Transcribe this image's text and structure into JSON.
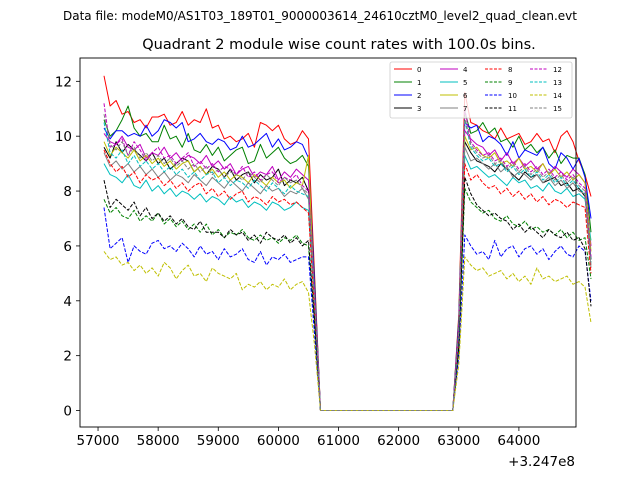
{
  "header_text": "Data file: modeM0/AS1T03_189T01_9000003614_24610cztM0_level2_quad_clean.evt",
  "chart_data": {
    "type": "line",
    "title": "Quadrant 2 module wise count rates with 100.0s bins.",
    "xlabel": "",
    "ylabel": "",
    "x_offset_label": "+3.247e8",
    "xlim": [
      56700,
      64950
    ],
    "ylim": [
      -0.6,
      12.85
    ],
    "x_ticks": [
      57000,
      58000,
      59000,
      60000,
      61000,
      62000,
      63000,
      64000
    ],
    "y_ticks": [
      0,
      2,
      4,
      6,
      8,
      10,
      12
    ],
    "x_start": 57100,
    "x_step": 100,
    "gap_start_index": 35,
    "gap_end_index": 59,
    "legend_location": "upper right",
    "series": [
      {
        "name": "0",
        "color": "#ff0000",
        "dash": "solid",
        "first": [
          12.2,
          11.1,
          11.3,
          10.8,
          10.9,
          10.5,
          10.6,
          10.3,
          10.7,
          10.7,
          10.8,
          10.4,
          10.5,
          10.9,
          10.4,
          10.6,
          10.5,
          11.0,
          10.3,
          10.4,
          9.9,
          10.0,
          9.8,
          9.9,
          10.1,
          9.6,
          10.5,
          10.4,
          10.2,
          10.4,
          9.9,
          9.7,
          9.8,
          10.2,
          9.9
        ],
        "drop": 5.0,
        "second": [
          11.6,
          10.5,
          10.4,
          10.2,
          10.1,
          9.9,
          10.3,
          9.9,
          10.0,
          10.1,
          9.7,
          9.8,
          10.1,
          9.8,
          9.9,
          9.4,
          10.0,
          10.2,
          9.8,
          9.1,
          8.6,
          7.8
        ]
      },
      {
        "name": "1",
        "color": "#008000",
        "dash": "solid",
        "first": [
          10.6,
          10.0,
          10.2,
          10.6,
          11.1,
          10.3,
          10.0,
          10.1,
          9.8,
          9.8,
          10.4,
          9.9,
          10.0,
          9.6,
          10.1,
          9.5,
          9.4,
          9.7,
          9.3,
          9.6,
          9.1,
          9.3,
          9.5,
          9.6,
          9.0,
          9.1,
          9.7,
          9.2,
          9.4,
          9.6,
          9.2,
          9.0,
          9.1,
          9.3,
          8.9
        ],
        "drop": 4.8,
        "second": [
          10.9,
          10.1,
          10.2,
          10.5,
          10.1,
          10.3,
          9.8,
          9.9,
          9.6,
          10.0,
          9.5,
          9.7,
          9.4,
          9.6,
          9.2,
          9.5,
          9.0,
          9.3,
          9.2,
          9.2,
          8.6,
          6.5
        ]
      },
      {
        "name": "2",
        "color": "#0000ff",
        "dash": "solid",
        "first": [
          10.3,
          9.9,
          10.2,
          10.2,
          10.0,
          10.1,
          10.0,
          10.4,
          10.0,
          10.2,
          10.6,
          10.5,
          10.3,
          10.5,
          9.8,
          9.9,
          10.1,
          9.8,
          9.7,
          9.9,
          9.8,
          9.5,
          9.6,
          10.0,
          9.6,
          9.7,
          9.9,
          10.1,
          9.6,
          9.9,
          9.5,
          9.6,
          9.8,
          9.7,
          9.2
        ],
        "drop": 4.6,
        "second": [
          10.5,
          10.3,
          10.4,
          9.8,
          10.0,
          9.9,
          9.7,
          9.3,
          9.8,
          9.2,
          9.5,
          9.4,
          9.3,
          9.6,
          9.0,
          8.8,
          9.4,
          9.2,
          8.8,
          9.2,
          8.5,
          7.0
        ]
      },
      {
        "name": "3",
        "color": "#000000",
        "dash": "solid",
        "first": [
          9.6,
          9.2,
          9.8,
          9.4,
          9.7,
          9.5,
          9.3,
          9.1,
          9.4,
          9.0,
          9.2,
          8.8,
          9.0,
          9.2,
          9.1,
          8.7,
          8.9,
          8.6,
          8.9,
          8.8,
          8.5,
          8.8,
          8.4,
          8.6,
          8.7,
          8.3,
          8.6,
          8.4,
          8.5,
          8.8,
          8.2,
          8.4,
          8.3,
          8.5,
          8.0
        ],
        "drop": 4.2,
        "second": [
          9.8,
          9.4,
          9.1,
          9.0,
          8.9,
          8.7,
          9.0,
          8.8,
          8.6,
          8.4,
          8.7,
          8.5,
          8.6,
          8.3,
          8.4,
          8.5,
          8.2,
          8.3,
          8.0,
          8.1,
          7.8,
          5.5
        ]
      },
      {
        "name": "4",
        "color": "#bf00bf",
        "dash": "solid",
        "first": [
          10.1,
          9.8,
          9.7,
          10.0,
          9.6,
          9.5,
          9.7,
          9.2,
          9.4,
          9.3,
          9.6,
          9.2,
          9.4,
          9.1,
          9.3,
          9.2,
          9.0,
          9.3,
          8.9,
          9.1,
          8.8,
          9.0,
          8.6,
          8.8,
          8.9,
          8.5,
          8.7,
          8.6,
          8.9,
          8.4,
          8.7,
          8.5,
          8.8,
          8.6,
          8.4
        ],
        "drop": 4.3,
        "second": [
          10.2,
          9.9,
          9.7,
          9.6,
          9.3,
          9.5,
          9.1,
          9.4,
          9.0,
          9.2,
          8.9,
          9.1,
          8.8,
          9.0,
          8.6,
          8.9,
          8.7,
          8.5,
          8.8,
          8.6,
          8.3,
          6.0
        ]
      },
      {
        "name": "5",
        "color": "#00bfbf",
        "dash": "solid",
        "first": [
          9.0,
          8.6,
          8.5,
          8.3,
          8.6,
          8.2,
          8.1,
          8.4,
          8.0,
          8.2,
          7.9,
          8.1,
          7.8,
          8.0,
          7.9,
          7.7,
          7.9,
          7.6,
          7.8,
          7.7,
          7.5,
          7.8,
          7.6,
          7.7,
          7.4,
          7.6,
          7.5,
          7.3,
          7.6,
          7.5,
          7.3,
          7.4,
          7.6,
          7.4,
          7.3
        ],
        "drop": 3.8,
        "second": [
          9.3,
          8.8,
          8.9,
          8.7,
          8.5,
          8.6,
          8.4,
          8.2,
          8.5,
          8.3,
          8.4,
          8.1,
          8.2,
          8.0,
          8.3,
          8.0,
          7.9,
          8.1,
          7.8,
          7.9,
          7.7,
          6.2
        ]
      },
      {
        "name": "6",
        "color": "#bfbf00",
        "dash": "solid",
        "first": [
          9.8,
          9.3,
          9.6,
          9.4,
          9.2,
          9.5,
          9.1,
          9.3,
          9.0,
          9.2,
          8.9,
          9.1,
          8.8,
          9.0,
          9.1,
          8.7,
          8.9,
          8.6,
          8.8,
          8.5,
          8.7,
          8.4,
          8.6,
          8.5,
          8.3,
          8.6,
          8.4,
          8.2,
          8.5,
          8.3,
          8.4,
          8.1,
          8.3,
          8.2,
          9.3
        ],
        "drop": 4.0,
        "second": [
          10.0,
          9.5,
          9.6,
          9.3,
          9.2,
          9.4,
          9.0,
          9.1,
          8.9,
          9.2,
          8.8,
          8.9,
          8.7,
          9.0,
          8.6,
          8.8,
          8.5,
          8.7,
          8.4,
          8.6,
          8.3,
          5.8
        ]
      },
      {
        "name": "7",
        "color": "#808080",
        "dash": "solid",
        "first": [
          9.4,
          8.9,
          9.1,
          8.8,
          9.0,
          8.7,
          8.9,
          8.6,
          8.8,
          8.5,
          8.7,
          8.4,
          8.6,
          8.5,
          8.3,
          8.6,
          8.4,
          8.2,
          8.5,
          8.3,
          8.1,
          8.4,
          8.2,
          8.0,
          8.3,
          8.1,
          7.9,
          8.2,
          8.0,
          8.1,
          7.8,
          8.0,
          7.9,
          8.1,
          7.7
        ],
        "drop": 3.9,
        "second": [
          9.6,
          9.1,
          9.2,
          9.0,
          8.8,
          9.0,
          8.7,
          8.9,
          8.5,
          8.7,
          8.6,
          8.4,
          8.6,
          8.3,
          8.5,
          8.2,
          8.4,
          8.1,
          8.3,
          8.0,
          7.9,
          5.2
        ]
      },
      {
        "name": "8",
        "color": "#ff0000",
        "dash": "dashed",
        "first": [
          9.5,
          9.0,
          8.7,
          8.9,
          8.5,
          8.7,
          8.3,
          8.6,
          8.4,
          8.5,
          8.2,
          8.4,
          8.1,
          8.3,
          8.0,
          8.2,
          8.3,
          7.9,
          8.1,
          7.8,
          8.0,
          7.7,
          7.9,
          8.0,
          7.6,
          7.8,
          7.7,
          7.5,
          7.8,
          7.6,
          7.7,
          7.5,
          7.6,
          7.4,
          7.2
        ],
        "drop": 3.7,
        "second": [
          9.0,
          8.4,
          8.6,
          8.3,
          8.1,
          8.2,
          7.9,
          8.1,
          7.8,
          8.0,
          7.7,
          7.9,
          7.6,
          7.8,
          7.5,
          7.7,
          7.6,
          7.4,
          7.6,
          7.5,
          7.4,
          5.0
        ]
      },
      {
        "name": "9",
        "color": "#008000",
        "dash": "dashed",
        "first": [
          7.7,
          7.2,
          7.4,
          7.1,
          7.0,
          7.3,
          6.9,
          7.1,
          6.9,
          7.2,
          6.8,
          7.0,
          6.7,
          6.9,
          6.6,
          6.8,
          6.5,
          6.8,
          6.4,
          6.6,
          6.3,
          6.5,
          6.4,
          6.6,
          6.3,
          6.2,
          6.4,
          6.2,
          6.3,
          6.1,
          6.3,
          6.2,
          6.4,
          6.1,
          6.0
        ],
        "drop": 3.2,
        "second": [
          8.1,
          7.6,
          7.4,
          7.2,
          7.3,
          7.0,
          6.9,
          7.1,
          6.8,
          6.7,
          6.9,
          6.6,
          6.7,
          6.5,
          6.6,
          6.4,
          6.6,
          6.3,
          6.5,
          6.2,
          6.3,
          4.8
        ]
      },
      {
        "name": "10",
        "color": "#0000ff",
        "dash": "dashed",
        "first": [
          7.4,
          5.9,
          6.1,
          6.3,
          5.4,
          6.0,
          5.8,
          5.7,
          6.1,
          6.2,
          5.9,
          6.0,
          5.8,
          6.1,
          5.9,
          5.6,
          6.0,
          5.7,
          5.8,
          5.5,
          5.9,
          5.6,
          5.7,
          5.9,
          5.5,
          5.4,
          5.8,
          5.3,
          5.6,
          5.5,
          5.7,
          5.4,
          5.5,
          5.6,
          5.6
        ],
        "drop": 2.8,
        "second": [
          6.4,
          6.0,
          5.7,
          5.8,
          5.5,
          6.2,
          5.6,
          5.9,
          6.0,
          5.6,
          5.9,
          6.0,
          5.7,
          5.9,
          5.5,
          5.8,
          6.0,
          5.7,
          5.6,
          6.0,
          5.8,
          4.0
        ]
      },
      {
        "name": "11",
        "color": "#000000",
        "dash": "dashed",
        "first": [
          8.4,
          7.4,
          7.7,
          7.5,
          7.3,
          7.6,
          7.1,
          7.4,
          7.0,
          7.2,
          6.9,
          7.1,
          6.8,
          7.0,
          6.7,
          6.6,
          6.9,
          6.5,
          6.5,
          6.5,
          6.3,
          6.6,
          6.4,
          6.5,
          6.2,
          6.4,
          6.1,
          6.5,
          6.3,
          6.2,
          6.4,
          6.1,
          6.3,
          6.0,
          6.2
        ],
        "drop": 3.3,
        "second": [
          8.5,
          7.9,
          7.5,
          7.3,
          7.1,
          7.2,
          7.0,
          6.9,
          6.6,
          6.8,
          6.5,
          6.7,
          6.5,
          6.3,
          6.6,
          6.4,
          6.3,
          6.5,
          6.2,
          6.3,
          5.9,
          3.8
        ]
      },
      {
        "name": "12",
        "color": "#bf00bf",
        "dash": "dashed",
        "first": [
          11.2,
          9.6,
          9.7,
          9.9,
          9.3,
          9.8,
          9.5,
          9.1,
          9.4,
          9.6,
          9.2,
          9.3,
          9.0,
          9.2,
          9.4,
          8.9,
          9.1,
          8.8,
          9.0,
          8.7,
          8.9,
          8.8,
          8.6,
          8.9,
          8.5,
          8.7,
          8.4,
          8.6,
          8.7,
          8.3,
          8.5,
          8.4,
          8.6,
          8.2,
          8.0
        ],
        "drop": 4.4,
        "second": [
          11.0,
          9.8,
          9.5,
          9.3,
          9.4,
          9.1,
          9.2,
          8.9,
          9.1,
          8.8,
          9.0,
          8.7,
          8.9,
          8.6,
          8.8,
          8.5,
          8.7,
          8.4,
          8.6,
          8.3,
          8.1,
          5.6
        ]
      },
      {
        "name": "13",
        "color": "#00bfbf",
        "dash": "dashed",
        "first": [
          10.5,
          9.4,
          9.2,
          9.5,
          9.0,
          9.3,
          8.9,
          9.1,
          8.8,
          9.0,
          8.7,
          8.9,
          8.6,
          8.8,
          8.5,
          8.7,
          8.4,
          8.6,
          8.7,
          8.3,
          8.5,
          8.2,
          8.4,
          8.3,
          8.1,
          8.4,
          8.2,
          8.0,
          8.3,
          8.1,
          7.9,
          8.2,
          8.0,
          7.9,
          7.8
        ],
        "drop": 4.1,
        "second": [
          10.6,
          9.6,
          9.3,
          9.1,
          9.2,
          8.9,
          9.0,
          8.7,
          8.9,
          8.6,
          8.8,
          8.5,
          8.7,
          8.4,
          8.6,
          8.3,
          8.5,
          8.2,
          8.4,
          8.1,
          7.9,
          5.4
        ]
      },
      {
        "name": "14",
        "color": "#bfbf00",
        "dash": "dashed",
        "first": [
          5.8,
          5.5,
          5.6,
          5.3,
          5.4,
          5.1,
          5.3,
          5.0,
          5.2,
          4.9,
          5.4,
          5.2,
          4.8,
          5.1,
          5.3,
          4.9,
          5.0,
          4.7,
          5.2,
          5.0,
          4.9,
          4.8,
          5.0,
          4.4,
          4.6,
          4.5,
          4.7,
          4.4,
          4.6,
          4.5,
          4.8,
          4.4,
          4.6,
          4.7,
          4.3
        ],
        "drop": 2.4,
        "second": [
          5.6,
          5.3,
          5.1,
          5.2,
          4.9,
          5.0,
          5.1,
          4.8,
          5.0,
          4.7,
          4.9,
          4.6,
          5.2,
          4.8,
          4.9,
          4.7,
          4.8,
          4.9,
          4.6,
          4.7,
          4.5,
          3.2
        ]
      },
      {
        "name": "15",
        "color": "#808080",
        "dash": "dashed",
        "first": [
          10.8,
          9.7,
          9.5,
          9.8,
          9.3,
          9.6,
          9.2,
          9.4,
          9.1,
          9.3,
          9.0,
          9.2,
          8.9,
          9.1,
          8.8,
          9.0,
          8.7,
          8.9,
          8.6,
          8.8,
          8.5,
          8.7,
          8.6,
          8.4,
          8.7,
          8.5,
          8.3,
          8.6,
          8.4,
          8.2,
          8.5,
          8.3,
          8.4,
          8.1,
          7.9
        ],
        "drop": 4.2,
        "second": [
          10.7,
          9.7,
          9.4,
          9.2,
          9.3,
          9.0,
          9.1,
          8.8,
          9.0,
          8.7,
          8.9,
          8.6,
          8.8,
          8.5,
          8.7,
          8.4,
          8.6,
          8.3,
          8.5,
          8.2,
          8.0,
          5.3
        ]
      }
    ]
  }
}
